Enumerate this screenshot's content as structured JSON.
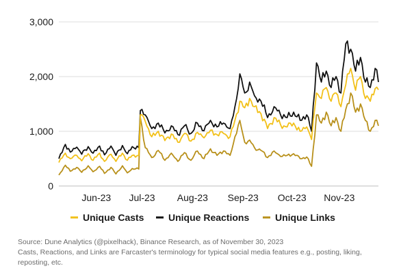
{
  "chart_data": {
    "type": "line",
    "title": "",
    "xlabel": "",
    "ylabel": "",
    "ylim": [
      0,
      3000
    ],
    "yticks": [
      0,
      1000,
      2000,
      3000
    ],
    "ytick_labels": [
      "0",
      "1,000",
      "2,000",
      "3,000"
    ],
    "grid": "horizontal",
    "legend_position": "bottom",
    "x_start": "2023-05-18",
    "x_end": "2023-11-30",
    "xticks": [
      {
        "date": "2023-06-10",
        "label": "Jun-23"
      },
      {
        "date": "2023-07-08",
        "label": "Jul-23"
      },
      {
        "date": "2023-08-08",
        "label": "Aug-23"
      },
      {
        "date": "2023-09-08",
        "label": "Sep-23"
      },
      {
        "date": "2023-10-08",
        "label": "Oct-23"
      },
      {
        "date": "2023-11-06",
        "label": "Nov-23"
      }
    ],
    "series": [
      {
        "name": "Unique Casts",
        "color": "#f2c018",
        "points": [
          [
            "2023-05-18",
            430
          ],
          [
            "2023-05-22",
            600
          ],
          [
            "2023-05-25",
            500
          ],
          [
            "2023-05-29",
            560
          ],
          [
            "2023-06-01",
            460
          ],
          [
            "2023-06-05",
            590
          ],
          [
            "2023-06-08",
            470
          ],
          [
            "2023-06-12",
            600
          ],
          [
            "2023-06-15",
            450
          ],
          [
            "2023-06-19",
            580
          ],
          [
            "2023-06-22",
            450
          ],
          [
            "2023-06-26",
            600
          ],
          [
            "2023-06-29",
            470
          ],
          [
            "2023-07-02",
            560
          ],
          [
            "2023-07-06",
            560
          ],
          [
            "2023-07-07",
            1300
          ],
          [
            "2023-07-10",
            1180
          ],
          [
            "2023-07-14",
            900
          ],
          [
            "2023-07-18",
            1000
          ],
          [
            "2023-07-22",
            830
          ],
          [
            "2023-07-26",
            950
          ],
          [
            "2023-07-30",
            800
          ],
          [
            "2023-08-03",
            960
          ],
          [
            "2023-08-07",
            820
          ],
          [
            "2023-08-11",
            980
          ],
          [
            "2023-08-15",
            880
          ],
          [
            "2023-08-19",
            1020
          ],
          [
            "2023-08-23",
            940
          ],
          [
            "2023-08-27",
            960
          ],
          [
            "2023-08-31",
            900
          ],
          [
            "2023-09-03",
            1200
          ],
          [
            "2023-09-06",
            1550
          ],
          [
            "2023-09-09",
            1430
          ],
          [
            "2023-09-12",
            1600
          ],
          [
            "2023-09-15",
            1450
          ],
          [
            "2023-09-19",
            1320
          ],
          [
            "2023-09-23",
            1050
          ],
          [
            "2023-09-27",
            1250
          ],
          [
            "2023-10-01",
            1120
          ],
          [
            "2023-10-05",
            1080
          ],
          [
            "2023-10-09",
            1150
          ],
          [
            "2023-10-13",
            1000
          ],
          [
            "2023-10-17",
            1080
          ],
          [
            "2023-10-20",
            850
          ],
          [
            "2023-10-23",
            1700
          ],
          [
            "2023-10-26",
            1600
          ],
          [
            "2023-10-29",
            1800
          ],
          [
            "2023-11-01",
            1550
          ],
          [
            "2023-11-04",
            1700
          ],
          [
            "2023-11-07",
            1450
          ],
          [
            "2023-11-10",
            1850
          ],
          [
            "2023-11-13",
            2150
          ],
          [
            "2023-11-16",
            1750
          ],
          [
            "2023-11-19",
            2000
          ],
          [
            "2023-11-22",
            1600
          ],
          [
            "2023-11-25",
            1550
          ],
          [
            "2023-11-28",
            1780
          ],
          [
            "2023-11-30",
            1760
          ]
        ]
      },
      {
        "name": "Unique Reactions",
        "color": "#111111",
        "points": [
          [
            "2023-05-18",
            500
          ],
          [
            "2023-05-22",
            760
          ],
          [
            "2023-05-25",
            620
          ],
          [
            "2023-05-29",
            710
          ],
          [
            "2023-06-01",
            580
          ],
          [
            "2023-06-05",
            720
          ],
          [
            "2023-06-08",
            600
          ],
          [
            "2023-06-12",
            730
          ],
          [
            "2023-06-15",
            570
          ],
          [
            "2023-06-19",
            730
          ],
          [
            "2023-06-22",
            560
          ],
          [
            "2023-06-26",
            740
          ],
          [
            "2023-06-29",
            590
          ],
          [
            "2023-07-02",
            720
          ],
          [
            "2023-07-06",
            700
          ],
          [
            "2023-07-07",
            1380
          ],
          [
            "2023-07-10",
            1300
          ],
          [
            "2023-07-14",
            1050
          ],
          [
            "2023-07-18",
            1150
          ],
          [
            "2023-07-22",
            970
          ],
          [
            "2023-07-26",
            1100
          ],
          [
            "2023-07-30",
            940
          ],
          [
            "2023-08-03",
            1100
          ],
          [
            "2023-08-07",
            960
          ],
          [
            "2023-08-11",
            1150
          ],
          [
            "2023-08-15",
            1010
          ],
          [
            "2023-08-19",
            1200
          ],
          [
            "2023-08-23",
            1080
          ],
          [
            "2023-08-27",
            1150
          ],
          [
            "2023-08-31",
            1050
          ],
          [
            "2023-09-03",
            1450
          ],
          [
            "2023-09-06",
            2050
          ],
          [
            "2023-09-09",
            1700
          ],
          [
            "2023-09-12",
            1900
          ],
          [
            "2023-09-15",
            1650
          ],
          [
            "2023-09-19",
            1550
          ],
          [
            "2023-09-23",
            1250
          ],
          [
            "2023-09-27",
            1450
          ],
          [
            "2023-10-01",
            1300
          ],
          [
            "2023-10-05",
            1250
          ],
          [
            "2023-10-09",
            1350
          ],
          [
            "2023-10-13",
            1200
          ],
          [
            "2023-10-17",
            1300
          ],
          [
            "2023-10-20",
            1000
          ],
          [
            "2023-10-23",
            2250
          ],
          [
            "2023-10-26",
            1900
          ],
          [
            "2023-10-29",
            2100
          ],
          [
            "2023-11-01",
            1800
          ],
          [
            "2023-11-04",
            2000
          ],
          [
            "2023-11-07",
            1700
          ],
          [
            "2023-11-10",
            2600
          ],
          [
            "2023-11-13",
            2500
          ],
          [
            "2023-11-16",
            2100
          ],
          [
            "2023-11-19",
            2350
          ],
          [
            "2023-11-22",
            1900
          ],
          [
            "2023-11-25",
            1800
          ],
          [
            "2023-11-28",
            2150
          ],
          [
            "2023-11-30",
            1900
          ]
        ]
      },
      {
        "name": "Unique Links",
        "color": "#b8901a",
        "points": [
          [
            "2023-05-18",
            200
          ],
          [
            "2023-05-22",
            380
          ],
          [
            "2023-05-25",
            270
          ],
          [
            "2023-05-29",
            340
          ],
          [
            "2023-06-01",
            250
          ],
          [
            "2023-06-05",
            370
          ],
          [
            "2023-06-08",
            260
          ],
          [
            "2023-06-12",
            360
          ],
          [
            "2023-06-15",
            230
          ],
          [
            "2023-06-19",
            340
          ],
          [
            "2023-06-22",
            220
          ],
          [
            "2023-06-26",
            370
          ],
          [
            "2023-06-29",
            240
          ],
          [
            "2023-07-02",
            320
          ],
          [
            "2023-07-06",
            310
          ],
          [
            "2023-07-07",
            1250
          ],
          [
            "2023-07-10",
            700
          ],
          [
            "2023-07-14",
            520
          ],
          [
            "2023-07-18",
            650
          ],
          [
            "2023-07-22",
            470
          ],
          [
            "2023-07-26",
            600
          ],
          [
            "2023-07-30",
            450
          ],
          [
            "2023-08-03",
            610
          ],
          [
            "2023-08-07",
            470
          ],
          [
            "2023-08-11",
            640
          ],
          [
            "2023-08-15",
            500
          ],
          [
            "2023-08-19",
            680
          ],
          [
            "2023-08-23",
            560
          ],
          [
            "2023-08-27",
            640
          ],
          [
            "2023-08-31",
            560
          ],
          [
            "2023-09-03",
            900
          ],
          [
            "2023-09-06",
            1200
          ],
          [
            "2023-09-09",
            800
          ],
          [
            "2023-09-12",
            840
          ],
          [
            "2023-09-15",
            700
          ],
          [
            "2023-09-19",
            650
          ],
          [
            "2023-09-23",
            520
          ],
          [
            "2023-09-27",
            640
          ],
          [
            "2023-10-01",
            540
          ],
          [
            "2023-10-05",
            560
          ],
          [
            "2023-10-09",
            590
          ],
          [
            "2023-10-13",
            500
          ],
          [
            "2023-10-17",
            530
          ],
          [
            "2023-10-20",
            360
          ],
          [
            "2023-10-23",
            1300
          ],
          [
            "2023-10-26",
            1150
          ],
          [
            "2023-10-29",
            1350
          ],
          [
            "2023-11-01",
            1100
          ],
          [
            "2023-11-04",
            1250
          ],
          [
            "2023-11-07",
            1000
          ],
          [
            "2023-11-10",
            1400
          ],
          [
            "2023-11-13",
            1700
          ],
          [
            "2023-11-16",
            1350
          ],
          [
            "2023-11-19",
            1500
          ],
          [
            "2023-11-22",
            1200
          ],
          [
            "2023-11-25",
            1000
          ],
          [
            "2023-11-28",
            1200
          ],
          [
            "2023-11-30",
            1100
          ]
        ]
      }
    ]
  },
  "footnotes": {
    "source": "Source: Dune Analytics (@pixelhack), Binance Research, as of November 30, 2023",
    "note": "Casts, Reactions, and Links are Farcaster's terminology for typical social media features e.g., posting, liking,",
    "note_cont": "reposting, etc."
  }
}
